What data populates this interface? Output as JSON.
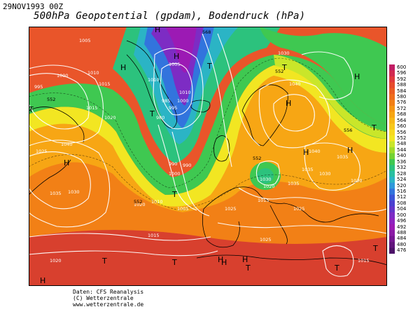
{
  "header": {
    "date": "29NOV1993 00Z",
    "title": "500hPa Geopotential (gpdam), Bodendruck (hPa)"
  },
  "legend": {
    "values": [
      "600",
      "596",
      "592",
      "588",
      "584",
      "580",
      "576",
      "572",
      "568",
      "564",
      "560",
      "556",
      "552",
      "548",
      "544",
      "540",
      "536",
      "532",
      "528",
      "524",
      "520",
      "516",
      "512",
      "508",
      "504",
      "500",
      "496",
      "492",
      "488",
      "484",
      "480",
      "476"
    ],
    "colors": [
      "#c21d64",
      "#d2294f",
      "#e0393c",
      "#e64b2c",
      "#eb5c22",
      "#ef6d1c",
      "#f28016",
      "#f59613",
      "#f7a614",
      "#f8b817",
      "#f8c81b",
      "#f7d91f",
      "#f2e622",
      "#c9e62a",
      "#a1dc2a",
      "#73d233",
      "#3fc851",
      "#2cc27d",
      "#29bfa1",
      "#2bb4c5",
      "#2f98da",
      "#3274dd",
      "#3a55d7",
      "#4a3fd0",
      "#6435c9",
      "#7d2cc4",
      "#8f22bf",
      "#9c1ab4",
      "#8b1aa5",
      "#761791",
      "#61157c",
      "#4c1268"
    ]
  },
  "map": {
    "highs": [
      "H",
      "H",
      "H",
      "H",
      "H",
      "H",
      "H",
      "H",
      "H",
      "H",
      "H",
      "H"
    ],
    "lows": [
      "T",
      "T",
      "T",
      "T",
      "T",
      "T",
      "T",
      "T",
      "T",
      "T",
      "T"
    ],
    "isobar_labels": [
      "995",
      "1000",
      "1005",
      "1010",
      "1015",
      "1020",
      "1025",
      "1030",
      "1035",
      "1040",
      "1020",
      "1015",
      "1010",
      "1005",
      "1000",
      "990",
      "985",
      "980",
      "1005",
      "1010",
      "1015",
      "1020",
      "1025",
      "1030",
      "1035",
      "1040",
      "1035",
      "1030",
      "1025",
      "1015",
      "1030",
      "1040",
      "1035",
      "1030",
      "1025",
      "1020",
      "1015",
      "1010",
      "1000",
      "995",
      "990"
    ],
    "geopot_labels": [
      "552",
      "552",
      "552",
      "552",
      "556",
      "568"
    ]
  },
  "credits": {
    "line1": "Daten: CFS Reanalysis",
    "line2": "(C) Wetterzentrale",
    "line3": "www.wetterzentrale.de"
  }
}
